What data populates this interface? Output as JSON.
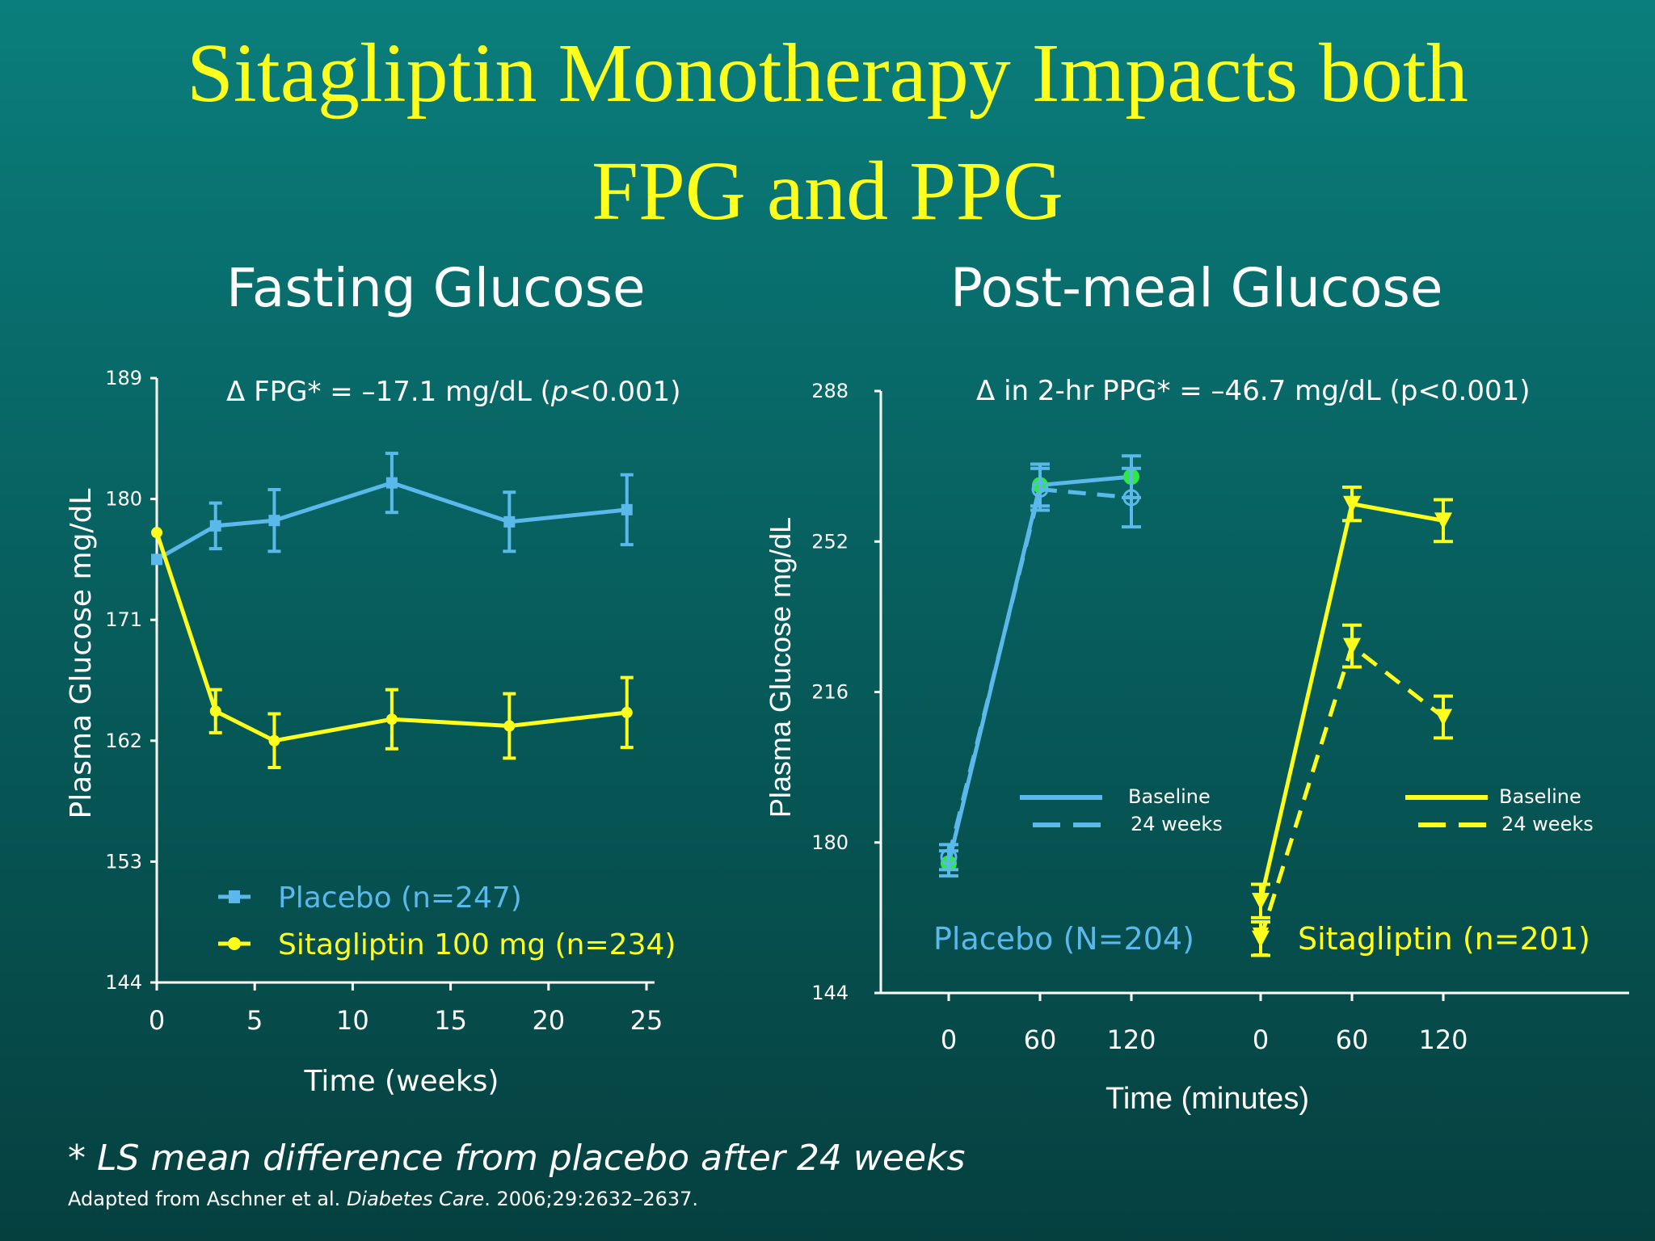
{
  "slide": {
    "title_line1": "Sitagliptin Monotherapy Impacts both",
    "title_line2": "FPG and PPG",
    "footnote": "* LS mean difference from placebo after 24 weeks",
    "citation_prefix": "Adapted from Aschner et al. ",
    "citation_journal": "Diabetes Care",
    "citation_suffix": ". 2006;29:2632–2637."
  },
  "colors": {
    "placebo": "#5ab8ea",
    "sitagliptin": "#ffff1e",
    "green_marker": "#2ee84a",
    "title": "#ffff1e"
  },
  "chart_data": [
    {
      "type": "line",
      "title": "Fasting Glucose",
      "annotation": {
        "prefix": "Δ FPG* = –17.1 mg/dL (",
        "p_letter": "p",
        "suffix": "<0.001)"
      },
      "xlabel": "Time (weeks)",
      "ylabel": "Plasma Glucose mg/dL",
      "xlim": [
        0,
        25
      ],
      "ylim": [
        144,
        189
      ],
      "xticks": [
        0,
        5,
        10,
        15,
        20,
        25
      ],
      "yticks": [
        144,
        153,
        162,
        171,
        180,
        189
      ],
      "legend_placement": "bottom-left",
      "series": [
        {
          "name": "Placebo (n=247)",
          "color": "#5ab8ea",
          "marker": "square",
          "x": [
            0,
            3,
            6,
            12,
            18,
            24
          ],
          "y": [
            175.5,
            178,
            178.4,
            181.2,
            178.3,
            179.2
          ],
          "err": [
            0,
            1.7,
            2.3,
            2.2,
            2.2,
            2.6
          ]
        },
        {
          "name": "Sitagliptin 100 mg (n=234)",
          "color": "#ffff1e",
          "marker": "circle",
          "x": [
            0,
            3,
            6,
            12,
            18,
            24
          ],
          "y": [
            177.5,
            164.2,
            162,
            163.6,
            163.1,
            164.1
          ],
          "err": [
            0,
            1.6,
            2.0,
            2.2,
            2.4,
            2.6
          ]
        }
      ]
    },
    {
      "type": "line",
      "title": "Post-meal Glucose",
      "annotation": {
        "text": "Δ in 2-hr PPG* = –46.7 mg/dL  (p<0.001)"
      },
      "xlabel": "Time (minutes)",
      "ylabel": "Plasma Glucose mg/dL",
      "ylim": [
        144,
        288
      ],
      "yticks": [
        144,
        180,
        216,
        252,
        288
      ],
      "groups": [
        {
          "xticks": [
            "0",
            "60",
            "120"
          ],
          "label": "Placebo (N=204)",
          "color": "#5ab8ea",
          "legend": [
            "Baseline",
            "24 weeks"
          ]
        },
        {
          "xticks": [
            "0",
            "60",
            "120"
          ],
          "label": "Sitagliptin (n=201)",
          "color": "#ffff1e",
          "legend": [
            "Baseline",
            "24 weeks"
          ]
        }
      ],
      "series": [
        {
          "name": "Placebo Baseline",
          "group": 0,
          "style": "solid",
          "color": "#5ab8ea",
          "marker": "circle-green",
          "x": [
            0,
            60,
            120
          ],
          "y": [
            175,
            265.5,
            267.5
          ],
          "err": [
            3,
            5,
            5
          ]
        },
        {
          "name": "Placebo 24 weeks",
          "group": 0,
          "style": "dashed",
          "color": "#5ab8ea",
          "marker": "circle-open",
          "x": [
            0,
            60,
            120
          ],
          "y": [
            176.5,
            264.5,
            262.5
          ],
          "err": [
            3,
            5,
            7
          ]
        },
        {
          "name": "Sitagliptin Baseline",
          "group": 1,
          "style": "solid",
          "color": "#ffff1e",
          "marker": "triangle-down",
          "x": [
            0,
            60,
            120
          ],
          "y": [
            166,
            261,
            257
          ],
          "err": [
            4,
            4,
            5
          ]
        },
        {
          "name": "Sitagliptin 24 weeks",
          "group": 1,
          "style": "dashed",
          "color": "#ffff1e",
          "marker": "triangle-down",
          "x": [
            0,
            60,
            120
          ],
          "y": [
            157,
            227,
            210
          ],
          "err": [
            4,
            5,
            5
          ]
        }
      ]
    }
  ]
}
